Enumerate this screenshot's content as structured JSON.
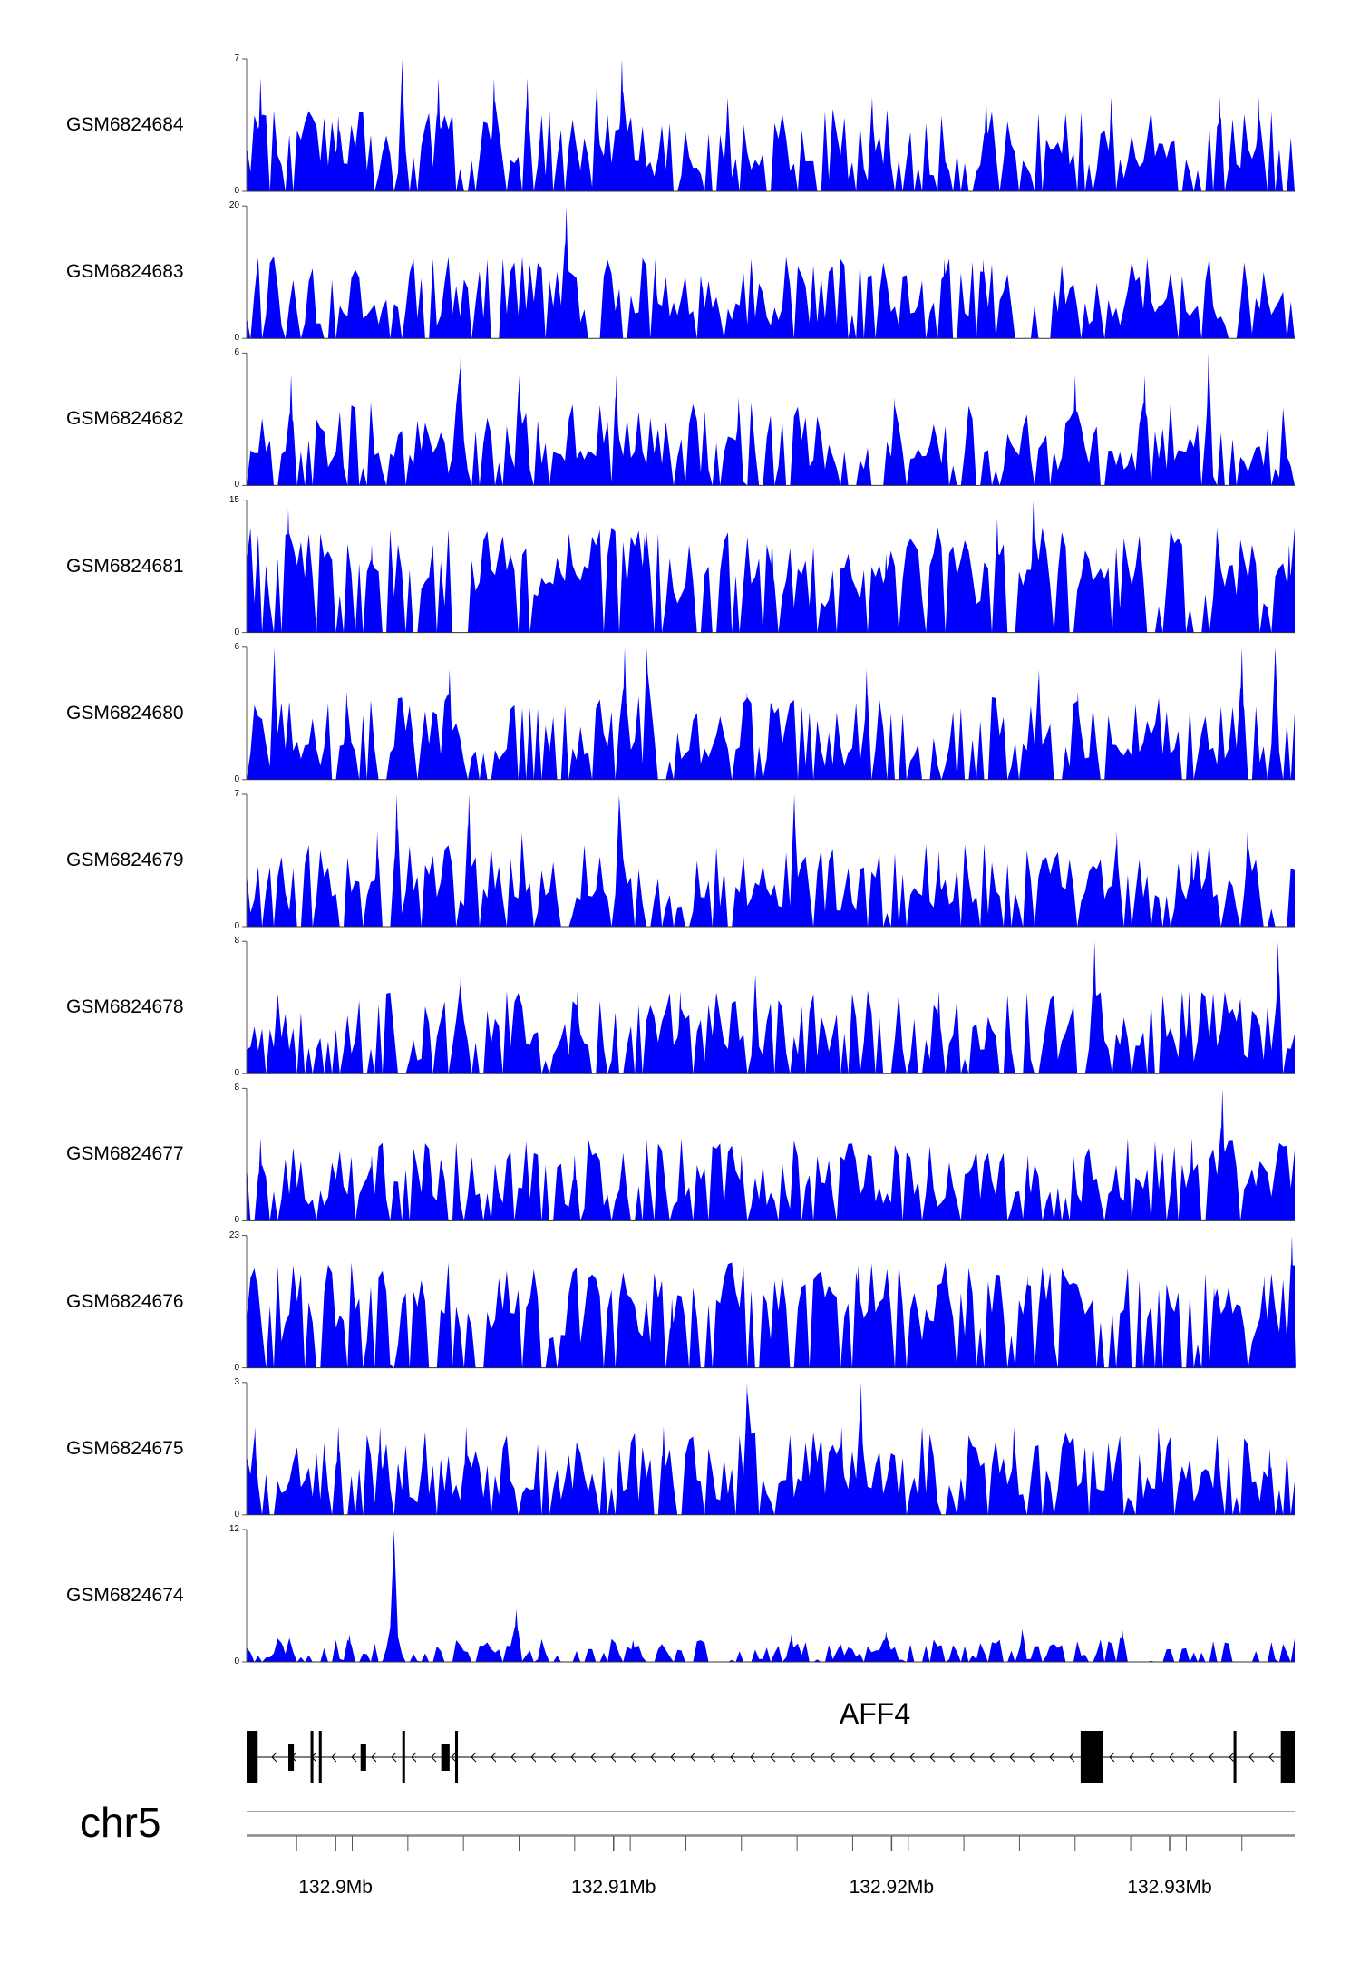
{
  "chart_data": {
    "type": "area",
    "title": "",
    "chromosome": "chr5",
    "color": "#0000ff",
    "x_range_mb": [
      132.8968,
      132.9345
    ],
    "x_axis": {
      "unit": "Mb",
      "major_ticks": [
        132.9,
        132.91,
        132.92,
        132.93
      ],
      "tick_labels": [
        "132.9Mb",
        "132.91Mb",
        "132.92Mb",
        "132.93Mb"
      ]
    },
    "tracks": [
      {
        "name": "GSM6824684",
        "ymin": 0,
        "ymax": 7,
        "y_tick_labels": [
          "7",
          "0"
        ],
        "peaks": [
          [
            132.8973,
            6
          ],
          [
            132.9001,
            4
          ],
          [
            132.9024,
            7
          ],
          [
            132.9037,
            6
          ],
          [
            132.9057,
            6
          ],
          [
            132.9069,
            6
          ],
          [
            132.9094,
            6
          ],
          [
            132.9103,
            7
          ],
          [
            132.9141,
            5
          ],
          [
            132.9193,
            5
          ],
          [
            132.9234,
            5
          ],
          [
            132.9279,
            5
          ],
          [
            132.9318,
            5
          ],
          [
            132.9332,
            5
          ]
        ]
      },
      {
        "name": "GSM6824683",
        "ymin": 0,
        "ymax": 20,
        "y_tick_labels": [
          "20",
          "0"
        ],
        "peaks": [
          [
            132.8979,
            8
          ],
          [
            132.9006,
            8
          ],
          [
            132.9041,
            8
          ],
          [
            132.9083,
            20
          ],
          [
            132.9115,
            12
          ],
          [
            132.9132,
            8
          ],
          [
            132.9172,
            8
          ],
          [
            132.9219,
            12
          ],
          [
            132.9233,
            12
          ],
          [
            132.9286,
            8
          ],
          [
            132.9328,
            8
          ]
        ]
      },
      {
        "name": "GSM6824682",
        "ymin": 0,
        "ymax": 6,
        "y_tick_labels": [
          "6",
          "0"
        ],
        "peaks": [
          [
            132.8984,
            5
          ],
          [
            132.9045,
            6
          ],
          [
            132.9066,
            5
          ],
          [
            132.9101,
            5
          ],
          [
            132.9145,
            4
          ],
          [
            132.9201,
            4
          ],
          [
            132.9266,
            5
          ],
          [
            132.9291,
            5
          ],
          [
            132.9314,
            6
          ],
          [
            132.9341,
            3
          ]
        ]
      },
      {
        "name": "GSM6824681",
        "ymin": 0,
        "ymax": 15,
        "y_tick_labels": [
          "15",
          "0"
        ],
        "peaks": [
          [
            132.8983,
            14
          ],
          [
            132.9013,
            10
          ],
          [
            132.9063,
            9
          ],
          [
            132.9087,
            4
          ],
          [
            132.9111,
            11
          ],
          [
            132.9157,
            11
          ],
          [
            132.9198,
            9
          ],
          [
            132.9238,
            13
          ],
          [
            132.9251,
            15
          ],
          [
            132.9317,
            12
          ],
          [
            132.9343,
            10
          ]
        ]
      },
      {
        "name": "GSM6824680",
        "ymin": 0,
        "ymax": 6,
        "y_tick_labels": [
          "6",
          "0"
        ],
        "peaks": [
          [
            132.8978,
            6
          ],
          [
            132.9004,
            4
          ],
          [
            132.9041,
            5
          ],
          [
            132.9104,
            6
          ],
          [
            132.9112,
            6
          ],
          [
            132.9148,
            4
          ],
          [
            132.9191,
            5
          ],
          [
            132.9253,
            5
          ],
          [
            132.9267,
            4
          ],
          [
            132.9326,
            6
          ],
          [
            132.9338,
            6
          ]
        ]
      },
      {
        "name": "GSM6824679",
        "ymin": 0,
        "ymax": 7,
        "y_tick_labels": [
          "7",
          "0"
        ],
        "peaks": [
          [
            132.9015,
            5
          ],
          [
            132.9022,
            7
          ],
          [
            132.9048,
            7
          ],
          [
            132.9067,
            5
          ],
          [
            132.9102,
            7
          ],
          [
            132.9165,
            7
          ],
          [
            132.9217,
            4
          ],
          [
            132.9281,
            5
          ],
          [
            132.9308,
            4
          ],
          [
            132.9328,
            5
          ]
        ]
      },
      {
        "name": "GSM6824678",
        "ymin": 0,
        "ymax": 8,
        "y_tick_labels": [
          "8",
          "0"
        ],
        "peaks": [
          [
            132.8979,
            5
          ],
          [
            132.9045,
            6
          ],
          [
            132.9087,
            5
          ],
          [
            132.9124,
            5
          ],
          [
            132.9151,
            6
          ],
          [
            132.9217,
            5
          ],
          [
            132.9273,
            8
          ],
          [
            132.9307,
            5
          ],
          [
            132.9339,
            8
          ]
        ]
      },
      {
        "name": "GSM6824677",
        "ymin": 0,
        "ymax": 8,
        "y_tick_labels": [
          "8",
          "0"
        ],
        "peaks": [
          [
            132.8973,
            5
          ],
          [
            132.9013,
            4
          ],
          [
            132.9086,
            4
          ],
          [
            132.9146,
            4
          ],
          [
            132.9187,
            4
          ],
          [
            132.9249,
            4
          ],
          [
            132.9308,
            5
          ],
          [
            132.9319,
            8
          ],
          [
            132.9339,
            4
          ]
        ]
      },
      {
        "name": "GSM6824676",
        "ymin": 0,
        "ymax": 23,
        "y_tick_labels": [
          "23",
          "0"
        ],
        "peaks": [
          [
            132.8972,
            15
          ],
          [
            132.9018,
            8
          ],
          [
            132.9087,
            10
          ],
          [
            132.9121,
            12
          ],
          [
            132.9155,
            12
          ],
          [
            132.9188,
            18
          ],
          [
            132.9249,
            16
          ],
          [
            132.9316,
            14
          ],
          [
            132.9334,
            16
          ],
          [
            132.9344,
            23
          ]
        ]
      },
      {
        "name": "GSM6824675",
        "ymin": 0,
        "ymax": 3,
        "y_tick_labels": [
          "3",
          "0"
        ],
        "peaks": [
          [
            132.8971,
            2
          ],
          [
            132.9001,
            2
          ],
          [
            132.9016,
            2
          ],
          [
            132.9047,
            2
          ],
          [
            132.9118,
            2
          ],
          [
            132.9148,
            3
          ],
          [
            132.9182,
            2
          ],
          [
            132.9189,
            3
          ],
          [
            132.9211,
            2
          ],
          [
            132.9244,
            2
          ],
          [
            132.9296,
            2
          ],
          [
            132.9336,
            1.5
          ]
        ]
      },
      {
        "name": "GSM6824674",
        "ymin": 0,
        "ymax": 12,
        "y_tick_labels": [
          "12",
          "0"
        ],
        "peaks": [
          [
            132.8981,
            1.6
          ],
          [
            132.9005,
            2.5
          ],
          [
            132.9021,
            12
          ],
          [
            132.9065,
            4.8
          ],
          [
            132.9107,
            2
          ],
          [
            132.9164,
            2.6
          ],
          [
            132.9198,
            2.8
          ],
          [
            132.9247,
            3
          ],
          [
            132.9283,
            3
          ]
        ]
      }
    ],
    "gene_annotation": {
      "gene_name": "AFF4",
      "strand": "-",
      "exons_mb": [
        [
          132.8968,
          132.8972
        ],
        [
          132.8983,
          132.8985
        ],
        [
          132.8991,
          132.8992
        ],
        [
          132.8994,
          132.8995
        ],
        [
          132.9009,
          132.9011
        ],
        [
          132.9024,
          132.9025
        ],
        [
          132.9038,
          132.9041
        ],
        [
          132.9043,
          132.9044
        ],
        [
          132.9268,
          132.9276
        ],
        [
          132.9271,
          132.9272
        ],
        [
          132.9323,
          132.9324
        ],
        [
          132.934,
          132.9345
        ]
      ]
    }
  }
}
